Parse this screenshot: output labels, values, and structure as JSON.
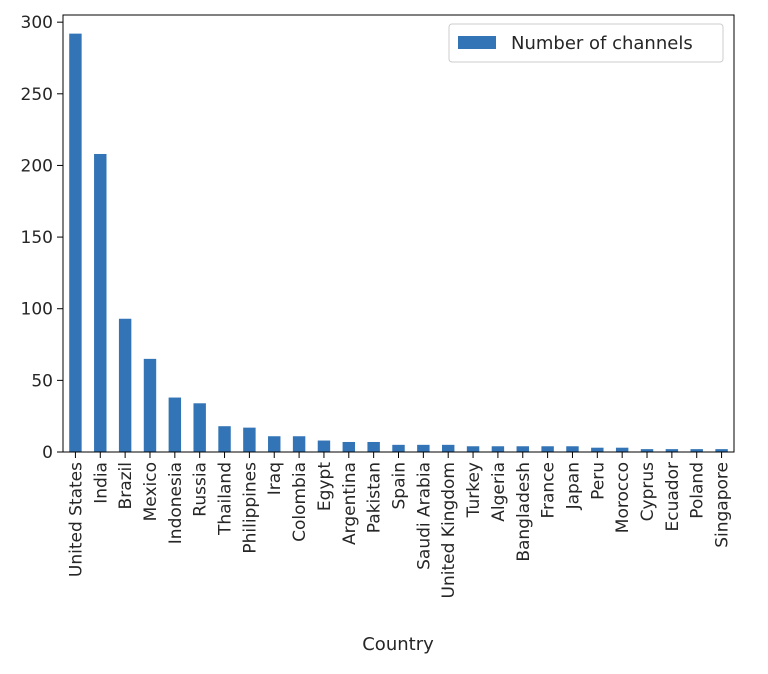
{
  "chart_data": {
    "type": "bar",
    "categories": [
      "United States",
      "India",
      "Brazil",
      "Mexico",
      "Indonesia",
      "Russia",
      "Thailand",
      "Philippines",
      "Iraq",
      "Colombia",
      "Egypt",
      "Argentina",
      "Pakistan",
      "Spain",
      "Saudi Arabia",
      "United Kingdom",
      "Turkey",
      "Algeria",
      "Bangladesh",
      "France",
      "Japan",
      "Peru",
      "Morocco",
      "Cyprus",
      "Ecuador",
      "Poland",
      "Singapore"
    ],
    "series": [
      {
        "name": "Number of channels",
        "values": [
          292,
          208,
          93,
          65,
          38,
          34,
          18,
          17,
          11,
          11,
          8,
          7,
          7,
          5,
          5,
          5,
          4,
          4,
          4,
          4,
          4,
          3,
          3,
          2,
          2,
          2,
          2
        ],
        "color": "#3274b5"
      }
    ],
    "xlabel": "Country",
    "ylabel": "",
    "ylim": [
      0,
      305
    ],
    "yticks": [
      0,
      50,
      100,
      150,
      200,
      250,
      300
    ],
    "legend_position": "top-right",
    "grid": false
  }
}
